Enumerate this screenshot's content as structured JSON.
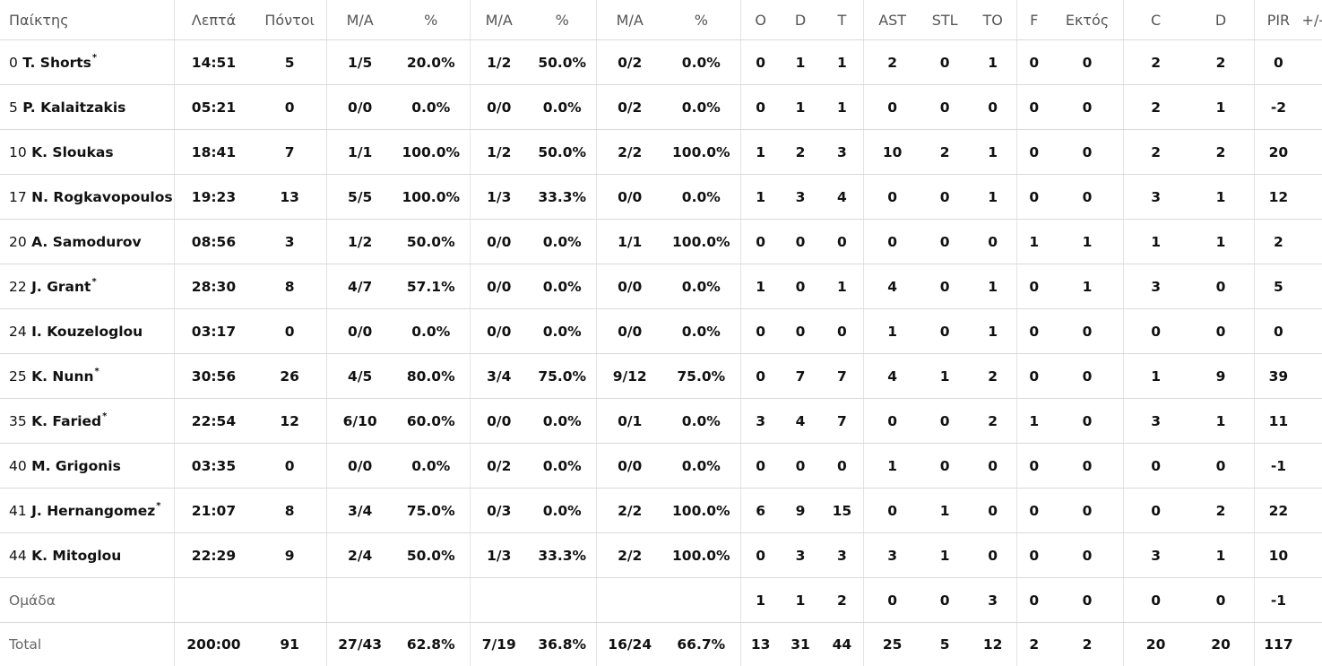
{
  "columns": [
    "Παίκτης",
    "Λεπτά",
    "Πόντοι",
    "Μ/Α",
    "%",
    "Μ/Α",
    "%",
    "Μ/Α",
    "%",
    "O",
    "D",
    "T",
    "AST",
    "STL",
    "TO",
    "F",
    "Εκτός",
    "C",
    "D",
    "PIR",
    "+/-"
  ],
  "players": [
    {
      "number": "0",
      "name": "T. Shorts",
      "starter_mark": "*",
      "stats": [
        "14:51",
        "5",
        "1/5",
        "20.0%",
        "1/2",
        "50.0%",
        "0/2",
        "0.0%",
        "0",
        "1",
        "1",
        "2",
        "0",
        "1",
        "0",
        "0",
        "2",
        "2",
        "0",
        ""
      ]
    },
    {
      "number": "5",
      "name": "P. Kalaitzakis",
      "starter_mark": "",
      "stats": [
        "05:21",
        "0",
        "0/0",
        "0.0%",
        "0/0",
        "0.0%",
        "0/2",
        "0.0%",
        "0",
        "1",
        "1",
        "0",
        "0",
        "0",
        "0",
        "0",
        "2",
        "1",
        "-2",
        ""
      ]
    },
    {
      "number": "10",
      "name": "K. Sloukas",
      "starter_mark": "",
      "stats": [
        "18:41",
        "7",
        "1/1",
        "100.0%",
        "1/2",
        "50.0%",
        "2/2",
        "100.0%",
        "1",
        "2",
        "3",
        "10",
        "2",
        "1",
        "0",
        "0",
        "2",
        "2",
        "20",
        ""
      ]
    },
    {
      "number": "17",
      "name": "N. Rogkavopoulos",
      "starter_mark": "",
      "stats": [
        "19:23",
        "13",
        "5/5",
        "100.0%",
        "1/3",
        "33.3%",
        "0/0",
        "0.0%",
        "1",
        "3",
        "4",
        "0",
        "0",
        "1",
        "0",
        "0",
        "3",
        "1",
        "12",
        ""
      ]
    },
    {
      "number": "20",
      "name": "A. Samodurov",
      "starter_mark": "",
      "stats": [
        "08:56",
        "3",
        "1/2",
        "50.0%",
        "0/0",
        "0.0%",
        "1/1",
        "100.0%",
        "0",
        "0",
        "0",
        "0",
        "0",
        "0",
        "1",
        "1",
        "1",
        "1",
        "2",
        ""
      ]
    },
    {
      "number": "22",
      "name": "J. Grant",
      "starter_mark": "*",
      "stats": [
        "28:30",
        "8",
        "4/7",
        "57.1%",
        "0/0",
        "0.0%",
        "0/0",
        "0.0%",
        "1",
        "0",
        "1",
        "4",
        "0",
        "1",
        "0",
        "1",
        "3",
        "0",
        "5",
        ""
      ]
    },
    {
      "number": "24",
      "name": "I. Kouzeloglou",
      "starter_mark": "",
      "stats": [
        "03:17",
        "0",
        "0/0",
        "0.0%",
        "0/0",
        "0.0%",
        "0/0",
        "0.0%",
        "0",
        "0",
        "0",
        "1",
        "0",
        "1",
        "0",
        "0",
        "0",
        "0",
        "0",
        ""
      ]
    },
    {
      "number": "25",
      "name": "K. Nunn",
      "starter_mark": "*",
      "stats": [
        "30:56",
        "26",
        "4/5",
        "80.0%",
        "3/4",
        "75.0%",
        "9/12",
        "75.0%",
        "0",
        "7",
        "7",
        "4",
        "1",
        "2",
        "0",
        "0",
        "1",
        "9",
        "39",
        ""
      ]
    },
    {
      "number": "35",
      "name": "K. Faried",
      "starter_mark": "*",
      "stats": [
        "22:54",
        "12",
        "6/10",
        "60.0%",
        "0/0",
        "0.0%",
        "0/1",
        "0.0%",
        "3",
        "4",
        "7",
        "0",
        "0",
        "2",
        "1",
        "0",
        "3",
        "1",
        "11",
        ""
      ]
    },
    {
      "number": "40",
      "name": "M. Grigonis",
      "starter_mark": "",
      "stats": [
        "03:35",
        "0",
        "0/0",
        "0.0%",
        "0/2",
        "0.0%",
        "0/0",
        "0.0%",
        "0",
        "0",
        "0",
        "1",
        "0",
        "0",
        "0",
        "0",
        "0",
        "0",
        "-1",
        ""
      ]
    },
    {
      "number": "41",
      "name": "J. Hernangomez",
      "starter_mark": "*",
      "stats": [
        "21:07",
        "8",
        "3/4",
        "75.0%",
        "0/3",
        "0.0%",
        "2/2",
        "100.0%",
        "6",
        "9",
        "15",
        "0",
        "1",
        "0",
        "0",
        "0",
        "0",
        "2",
        "22",
        ""
      ]
    },
    {
      "number": "44",
      "name": "K. Mitoglou",
      "starter_mark": "",
      "stats": [
        "22:29",
        "9",
        "2/4",
        "50.0%",
        "1/3",
        "33.3%",
        "2/2",
        "100.0%",
        "0",
        "3",
        "3",
        "3",
        "1",
        "0",
        "0",
        "0",
        "3",
        "1",
        "10",
        ""
      ]
    }
  ],
  "team_row": {
    "label": "Ομάδα",
    "stats": [
      "",
      "",
      "",
      "",
      "",
      "",
      "",
      "",
      "1",
      "1",
      "2",
      "0",
      "0",
      "3",
      "0",
      "0",
      "0",
      "0",
      "-1",
      ""
    ]
  },
  "total_row": {
    "label": "Total",
    "stats": [
      "200:00",
      "91",
      "27/43",
      "62.8%",
      "7/19",
      "36.8%",
      "16/24",
      "66.7%",
      "13",
      "31",
      "44",
      "25",
      "5",
      "12",
      "2",
      "2",
      "20",
      "20",
      "117",
      ""
    ]
  }
}
